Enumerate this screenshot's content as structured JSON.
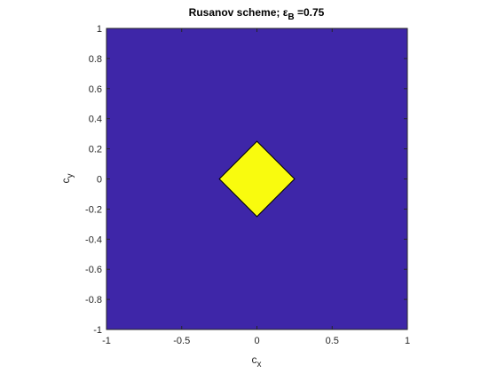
{
  "chart_data": {
    "type": "region",
    "title": [
      "Rusanov scheme; ε",
      "B",
      " =0.75"
    ],
    "xlabel": [
      "c",
      "x"
    ],
    "ylabel": [
      "c",
      "y"
    ],
    "xlim": [
      -1,
      1
    ],
    "ylim": [
      -1,
      1
    ],
    "xticks": [
      -1,
      -0.5,
      0,
      0.5,
      1
    ],
    "yticks": [
      -1,
      -0.8,
      -0.6,
      -0.4,
      -0.2,
      0,
      0.2,
      0.4,
      0.6,
      0.8,
      1
    ],
    "background_color": "#3e26a8",
    "polygon": {
      "x": [
        0,
        0.25,
        0,
        -0.25
      ],
      "y": [
        0.25,
        0,
        -0.25,
        0
      ],
      "color": "#f9fb0e"
    }
  }
}
